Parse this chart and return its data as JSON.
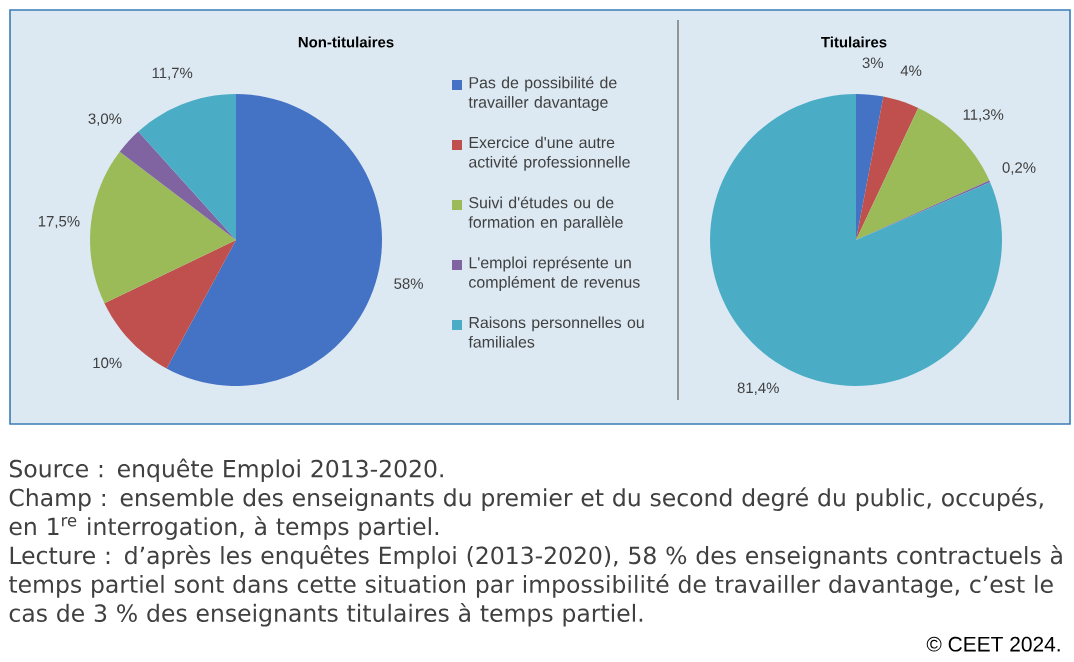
{
  "chart_data": [
    {
      "type": "pie",
      "title": "Non-titulaires",
      "categories": [
        "Pas de possibilité de travailler davantage",
        "Exercice d'une autre activité professionnelle",
        "Suivi d'études ou de formation en parallèle",
        "L'emploi représente un complément de revenus",
        "Raisons personnelles ou familiales"
      ],
      "values": [
        58,
        10,
        17.5,
        3.0,
        11.7
      ],
      "value_labels": [
        "58%",
        "10%",
        "17,5%",
        "3,0%",
        "11,7%"
      ],
      "colors": [
        "#4472c4",
        "#c0504d",
        "#9bbb59",
        "#8064a2",
        "#4bacc6"
      ],
      "legend": "right",
      "annotations": [
        "Source : enquête Emploi 2013-2020.",
        "Champ : ensemble des enseignants du premier et du second degré du public, occupés, en 1$^{re}$ interrogation, à temps partiel.",
        "Lecture : d’après les enquêtes Emploi (2013-2020), 58 % des enseignants contractuels à temps partiel sont dans cette situation par impossibilité de travailler davantage, c’est le cas de 3 % des enseignants titulaires à temps partiel.",
        "© CEET 2024."
      ]
    },
    {
      "type": "pie",
      "title": "Titulaires",
      "categories": [
        null,
        null,
        null,
        null,
        null
      ],
      "values": [
        3,
        4,
        11.3,
        0.2,
        81.4
      ],
      "value_labels": [
        "3%",
        "4%",
        "11,3%",
        "0,2%",
        "81,4%"
      ],
      "colors": [
        "#4472c4",
        "#c0504d",
        "#9bbb59",
        "#8064a2",
        "#4bacc6"
      ]
    }
  ]
}
